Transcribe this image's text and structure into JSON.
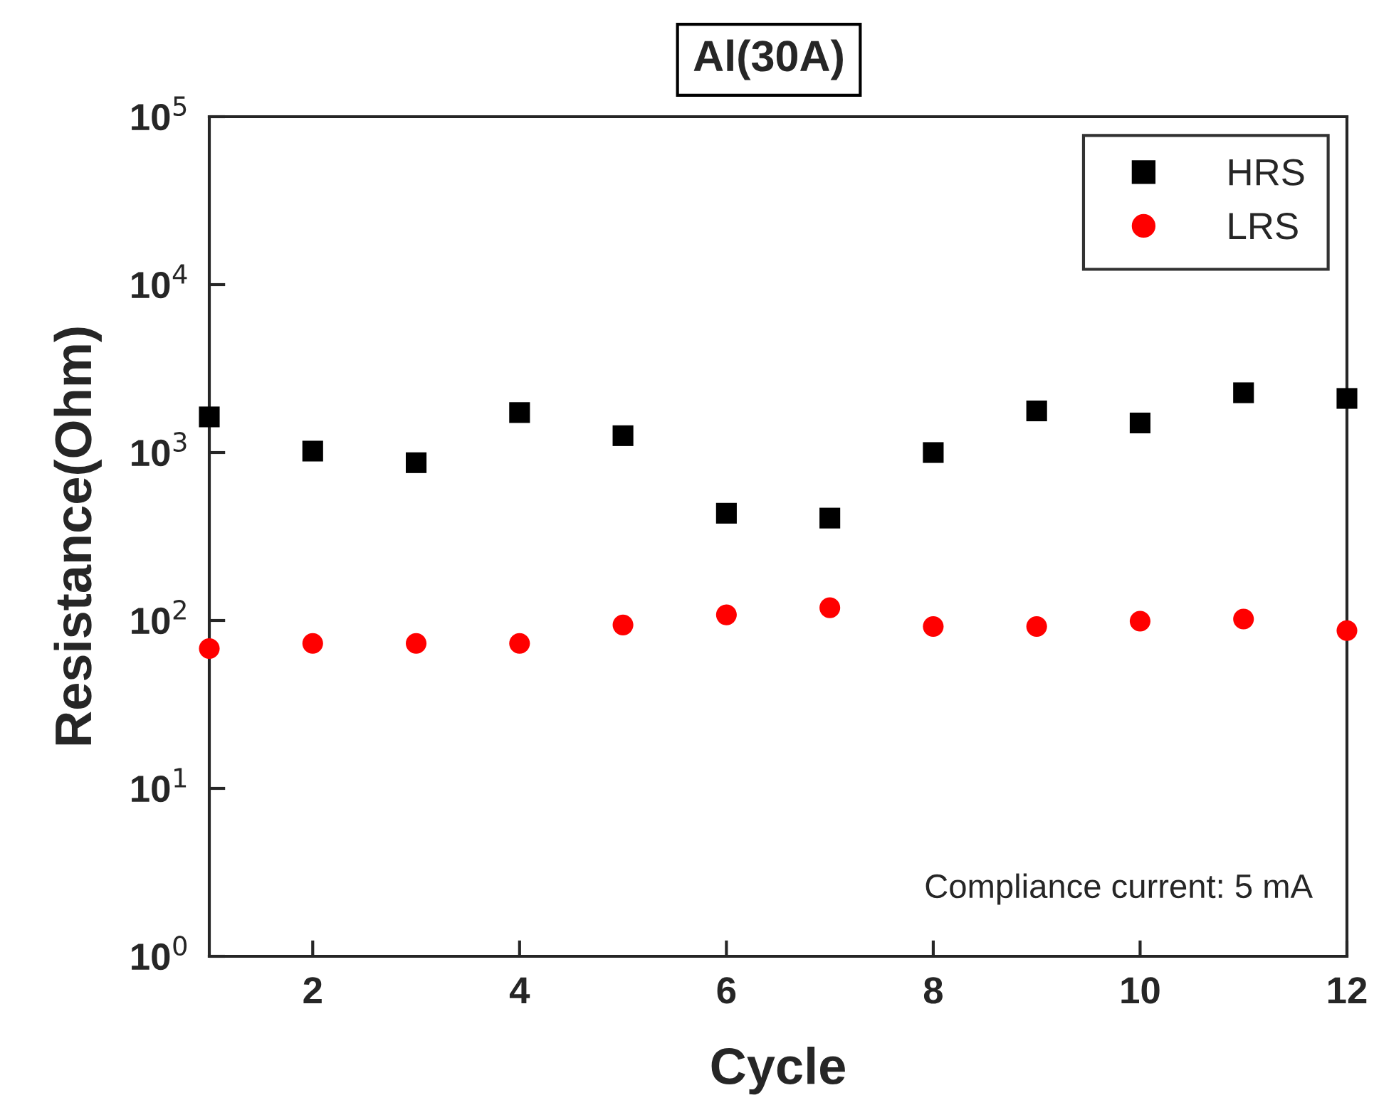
{
  "chart_data": {
    "type": "scatter",
    "title": "Al(30A)",
    "xlabel": "Cycle",
    "ylabel": "Resistance(Ohm)",
    "x": [
      1,
      2,
      3,
      4,
      5,
      6,
      7,
      8,
      9,
      10,
      11,
      12
    ],
    "series": [
      {
        "name": "HRS",
        "color": "#000000",
        "marker": "square",
        "values": [
          1630,
          1020,
          870,
          1730,
          1260,
          435,
          407,
          1000,
          1770,
          1500,
          2270,
          2100
        ]
      },
      {
        "name": "LRS",
        "color": "#ff0000",
        "marker": "circle",
        "values": [
          68,
          73,
          73,
          73,
          94,
          108,
          119,
          92,
          92,
          99,
          102,
          87
        ]
      }
    ],
    "log": "y",
    "xlim": [
      1,
      12
    ],
    "xticks": [
      2,
      4,
      6,
      8,
      10,
      12
    ],
    "ylim": [
      1,
      100000
    ],
    "yticks": [
      {
        "value": 1,
        "label": "10$^{0}$"
      },
      {
        "value": 10,
        "label": "10$^{1}$"
      },
      {
        "value": 100,
        "label": "10$^{2}$"
      },
      {
        "value": 1000,
        "label": "10$^{3}$"
      },
      {
        "value": 10000,
        "label": "10$^{4}$"
      },
      {
        "value": 100000,
        "label": "10$^{5}$"
      }
    ],
    "legend": "top right",
    "grid": false,
    "annotations": [
      "Compliance current: 5 mA"
    ]
  }
}
